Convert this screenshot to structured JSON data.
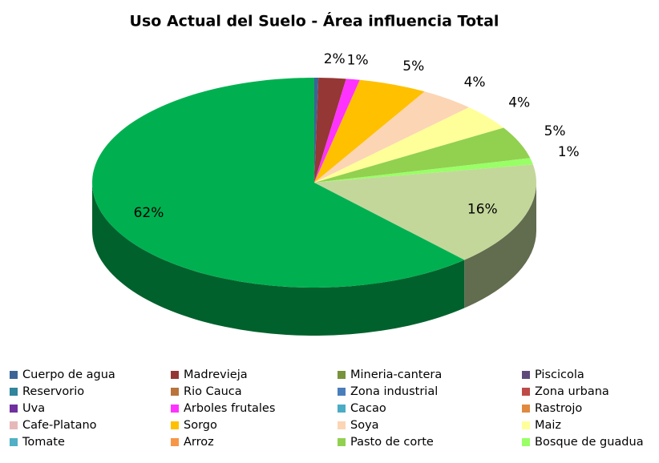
{
  "chart_data": {
    "type": "pie",
    "title": "Uso Actual del Suelo - Área influencia Total",
    "categories": [
      "Cuerpo de agua",
      "Madrevieja",
      "Mineria-cantera",
      "Piscicola",
      "Reservorio",
      "Rio Cauca",
      "Zona industrial",
      "Zona urbana",
      "Uva",
      "Arboles frutales",
      "Cacao",
      "Rastrojo",
      "Cafe-Platano",
      "Sorgo",
      "Soya",
      "Maiz",
      "Tomate",
      "Arroz",
      "Pasto de corte",
      "Bosque de guadua",
      null,
      null
    ],
    "values": [
      0.3,
      2,
      0,
      0,
      0,
      0,
      0,
      0,
      0,
      1,
      0,
      0,
      0,
      5,
      4,
      4,
      0,
      0,
      5,
      1,
      16,
      62
    ],
    "value_labels": [
      null,
      "2%",
      null,
      null,
      null,
      null,
      null,
      null,
      null,
      "1%",
      null,
      null,
      null,
      "5%",
      "4%",
      "4%",
      null,
      null,
      "5%",
      "1%",
      "16%",
      "62%"
    ],
    "colors": [
      "#3c6496",
      "#953735",
      "#77933c",
      "#604a7b",
      "#31859c",
      "#b9733b",
      "#4a7ebb",
      "#be4b48",
      "#7030a0",
      "#ff33ff",
      "#4bacc6",
      "#e08a40",
      "#e6b9b8",
      "#ffc000",
      "#fcd5b5",
      "#ffff99",
      "#4fb0c6",
      "#f79646",
      "#92d050",
      "#99ff66",
      "#c4d79b",
      "#00b050"
    ],
    "legend": "bottom"
  }
}
